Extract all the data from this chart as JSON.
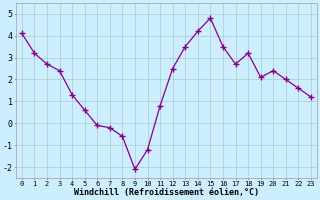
{
  "x": [
    0,
    1,
    2,
    3,
    4,
    5,
    6,
    7,
    8,
    9,
    10,
    11,
    12,
    13,
    14,
    15,
    16,
    17,
    18,
    19,
    20,
    21,
    22,
    23
  ],
  "y": [
    4.1,
    3.2,
    2.7,
    2.4,
    1.3,
    0.6,
    -0.1,
    -0.2,
    -0.6,
    -2.1,
    -1.2,
    0.8,
    2.5,
    3.5,
    4.2,
    4.8,
    3.5,
    2.7,
    3.2,
    2.1,
    2.4,
    2.0,
    1.6,
    1.2
  ],
  "line_color": "#880088",
  "marker": "+",
  "marker_size": 4,
  "bg_color": "#cceeff",
  "grid_color": "#aacccc",
  "xlabel": "Windchill (Refroidissement éolien,°C)",
  "ylim": [
    -2.5,
    5.5
  ],
  "xlim": [
    -0.5,
    23.5
  ],
  "yticks": [
    -2,
    -1,
    0,
    1,
    2,
    3,
    4,
    5
  ],
  "xtick_fontsize": 5,
  "ytick_fontsize": 6,
  "xlabel_fontsize": 6,
  "linewidth": 0.9,
  "spine_color": "#aaaaaa"
}
